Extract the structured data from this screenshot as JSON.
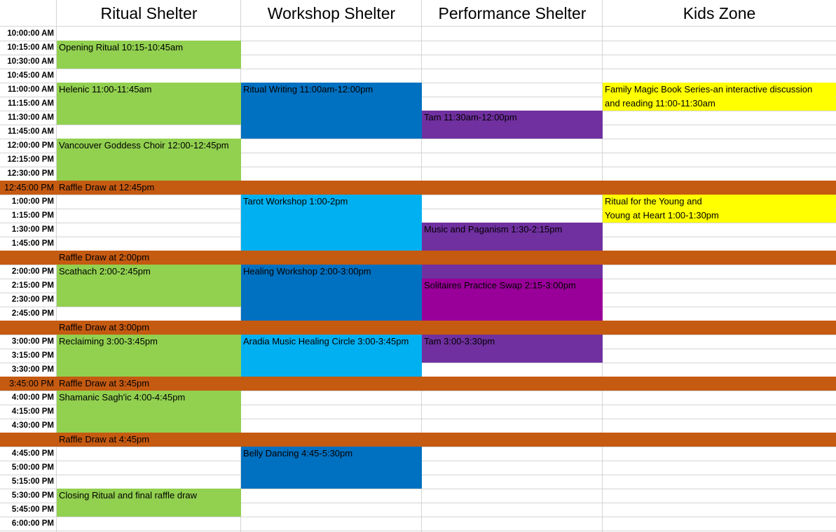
{
  "headers": [
    "Ritual Shelter",
    "Workshop Shelter",
    "Performance Shelter",
    "Kids Zone"
  ],
  "times": [
    "10:00:00 AM",
    "10:15:00 AM",
    "10:30:00 AM",
    "10:45:00 AM",
    "11:00:00 AM",
    "11:15:00 AM",
    "11:30:00 AM",
    "11:45:00 AM",
    "12:00:00 PM",
    "12:15:00 PM",
    "12:30:00 PM",
    "12:45:00 PM",
    "1:00:00 PM",
    "1:15:00 PM",
    "1:30:00 PM",
    "1:45:00 PM",
    "",
    "2:00:00 PM",
    "2:15:00 PM",
    "2:30:00 PM",
    "2:45:00 PM",
    "",
    "3:00:00 PM",
    "3:15:00 PM",
    "3:30:00 PM",
    "3:45:00 PM",
    "4:00:00 PM",
    "4:15:00 PM",
    "4:30:00 PM",
    "",
    "4:45:00 PM",
    "5:00:00 PM",
    "5:15:00 PM",
    "5:30:00 PM",
    "5:45:00 PM",
    "6:00:00 PM"
  ],
  "band_rows": [
    11,
    16,
    21,
    25,
    29
  ],
  "colors": {
    "ritual_green": "#92d050",
    "workshop_blue": "#0070c0",
    "workshop_light_blue": "#00b0f0",
    "performance_purple": "#7030a0",
    "performance_magenta": "#990099",
    "kids_yellow": "#ffff00",
    "raffle_orange": "#c55a11"
  },
  "events": [
    {
      "col": 1,
      "start": 1,
      "end": 2,
      "color": "#92d050",
      "labels": [
        "Opening Ritual 10:15-10:45am"
      ]
    },
    {
      "col": 1,
      "start": 4,
      "end": 6,
      "color": "#92d050",
      "labels": [
        "Helenic 11:00-11:45am"
      ]
    },
    {
      "col": 1,
      "start": 8,
      "end": 10,
      "color": "#92d050",
      "labels": [
        "Vancouver Goddess Choir 12:00-12:45pm"
      ]
    },
    {
      "col": 1,
      "start": 17,
      "end": 19,
      "color": "#92d050",
      "labels": [
        "Scathach 2:00-2:45pm"
      ]
    },
    {
      "col": 1,
      "start": 22,
      "end": 24,
      "color": "#92d050",
      "labels": [
        "Reclaiming 3:00-3:45pm"
      ]
    },
    {
      "col": 1,
      "start": 26,
      "end": 28,
      "color": "#92d050",
      "labels": [
        "Shamanic Sagh'ic 4:00-4:45pm"
      ]
    },
    {
      "col": 1,
      "start": 33,
      "end": 34,
      "color": "#92d050",
      "labels": [
        "Closing Ritual and final raffle draw"
      ]
    },
    {
      "col": 2,
      "start": 4,
      "end": 7,
      "color": "#0070c0",
      "labels": [
        "Ritual Writing 11:00am-12:00pm"
      ]
    },
    {
      "col": 2,
      "start": 12,
      "end": 15,
      "color": "#00b0f0",
      "labels": [
        "Tarot Workshop 1:00-2pm"
      ]
    },
    {
      "col": 2,
      "start": 17,
      "end": 20,
      "color": "#0070c0",
      "labels": [
        "Healing Workshop 2:00-3:00pm"
      ]
    },
    {
      "col": 2,
      "start": 22,
      "end": 24,
      "color": "#00b0f0",
      "labels": [
        "Aradia Music Healing Circle 3:00-3:45pm"
      ]
    },
    {
      "col": 2,
      "start": 30,
      "end": 32,
      "color": "#0070c0",
      "labels": [
        "Belly Dancing 4:45-5:30pm"
      ]
    },
    {
      "col": 3,
      "start": 6,
      "end": 7,
      "color": "#7030a0",
      "labels": [
        "Tam 11:30am-12:00pm"
      ]
    },
    {
      "col": 3,
      "start": 14,
      "end": 15,
      "color": "#7030a0",
      "labels": [
        "Music and Paganism 1:30-2:15pm"
      ]
    },
    {
      "col": 3,
      "start": 17,
      "end": 17,
      "color": "#7030a0",
      "labels": []
    },
    {
      "col": 3,
      "start": 18,
      "end": 20,
      "color": "#990099",
      "labels": [
        "Solitaires Practice Swap 2:15-3:00pm"
      ]
    },
    {
      "col": 3,
      "start": 22,
      "end": 23,
      "color": "#7030a0",
      "labels": [
        "Tam 3:00-3:30pm"
      ]
    },
    {
      "col": 4,
      "start": 4,
      "end": 5,
      "color": "#ffff00",
      "labels": [
        "Family Magic Book Series-an interactive discussion",
        "and reading 11:00-11:30am"
      ]
    },
    {
      "col": 4,
      "start": 12,
      "end": 13,
      "color": "#ffff00",
      "labels": [
        "Ritual for the Young and",
        " Young at Heart 1:00-1:30pm"
      ]
    }
  ],
  "raffles": [
    {
      "row": 11,
      "label": "Raffle Draw at 12:45pm"
    },
    {
      "row": 16,
      "label": "Raffle Draw at 2:00pm"
    },
    {
      "row": 21,
      "label": "Raffle Draw at 3:00pm"
    },
    {
      "row": 25,
      "label": "Raffle Draw at 3:45pm"
    },
    {
      "row": 29,
      "label": "Raffle Draw at 4:45pm"
    }
  ]
}
